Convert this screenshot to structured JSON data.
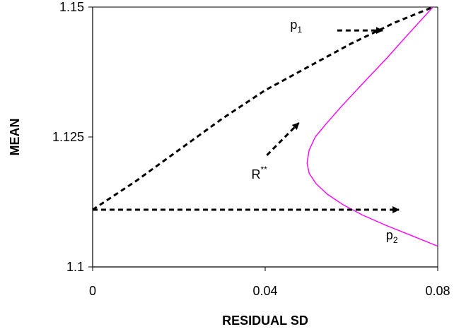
{
  "chart_data": {
    "type": "line",
    "title": "",
    "xlabel": "RESIDUAL SD",
    "ylabel": "MEAN",
    "xlim": [
      0,
      0.08
    ],
    "ylim": [
      1.1,
      1.15
    ],
    "x_ticks": [
      0,
      0.04,
      0.08
    ],
    "x_tick_labels": [
      "0",
      "0.04",
      "0.08"
    ],
    "y_ticks": [
      1.1,
      1.125,
      1.15
    ],
    "y_tick_labels": [
      "1.1",
      "1.125",
      "1.15"
    ],
    "grid": false,
    "legend": "none",
    "series": [
      {
        "style": "solid",
        "color": "#ff00ff",
        "x": [
          0.0789,
          0.0734,
          0.068,
          0.0623,
          0.0578,
          0.0541,
          0.0516,
          0.0502,
          0.0497,
          0.0502,
          0.0518,
          0.0544,
          0.058,
          0.0625,
          0.068,
          0.074,
          0.08
        ],
        "y": [
          1.15,
          1.145,
          1.14,
          1.135,
          1.131,
          1.1275,
          1.125,
          1.1225,
          1.12,
          1.118,
          1.116,
          1.114,
          1.112,
          1.11,
          1.108,
          1.106,
          1.104
        ]
      },
      {
        "style": "dashed",
        "color": "#000000",
        "x": [
          0.0,
          0.01,
          0.02,
          0.03,
          0.04,
          0.05,
          0.06,
          0.07,
          0.0789
        ],
        "y": [
          1.111,
          1.1165,
          1.1225,
          1.1285,
          1.134,
          1.1385,
          1.143,
          1.147,
          1.15
        ]
      }
    ],
    "annotations": [
      {
        "text": "p",
        "sub": "1",
        "at": [
          0.0458,
          1.1458
        ]
      },
      {
        "text": "R",
        "sup": "**",
        "at": [
          0.0368,
          1.117
        ]
      },
      {
        "text": "p",
        "sub": "2",
        "at": [
          0.068,
          1.1053
        ]
      }
    ],
    "arrows": [
      {
        "from": [
          0.0567,
          1.1455
        ],
        "to": [
          0.0672,
          1.1455
        ]
      },
      {
        "from": [
          0.0404,
          1.1215
        ],
        "to": [
          0.0478,
          1.1277
        ]
      },
      {
        "from": [
          0.0,
          1.111
        ],
        "to": [
          0.071,
          1.111
        ]
      }
    ]
  }
}
